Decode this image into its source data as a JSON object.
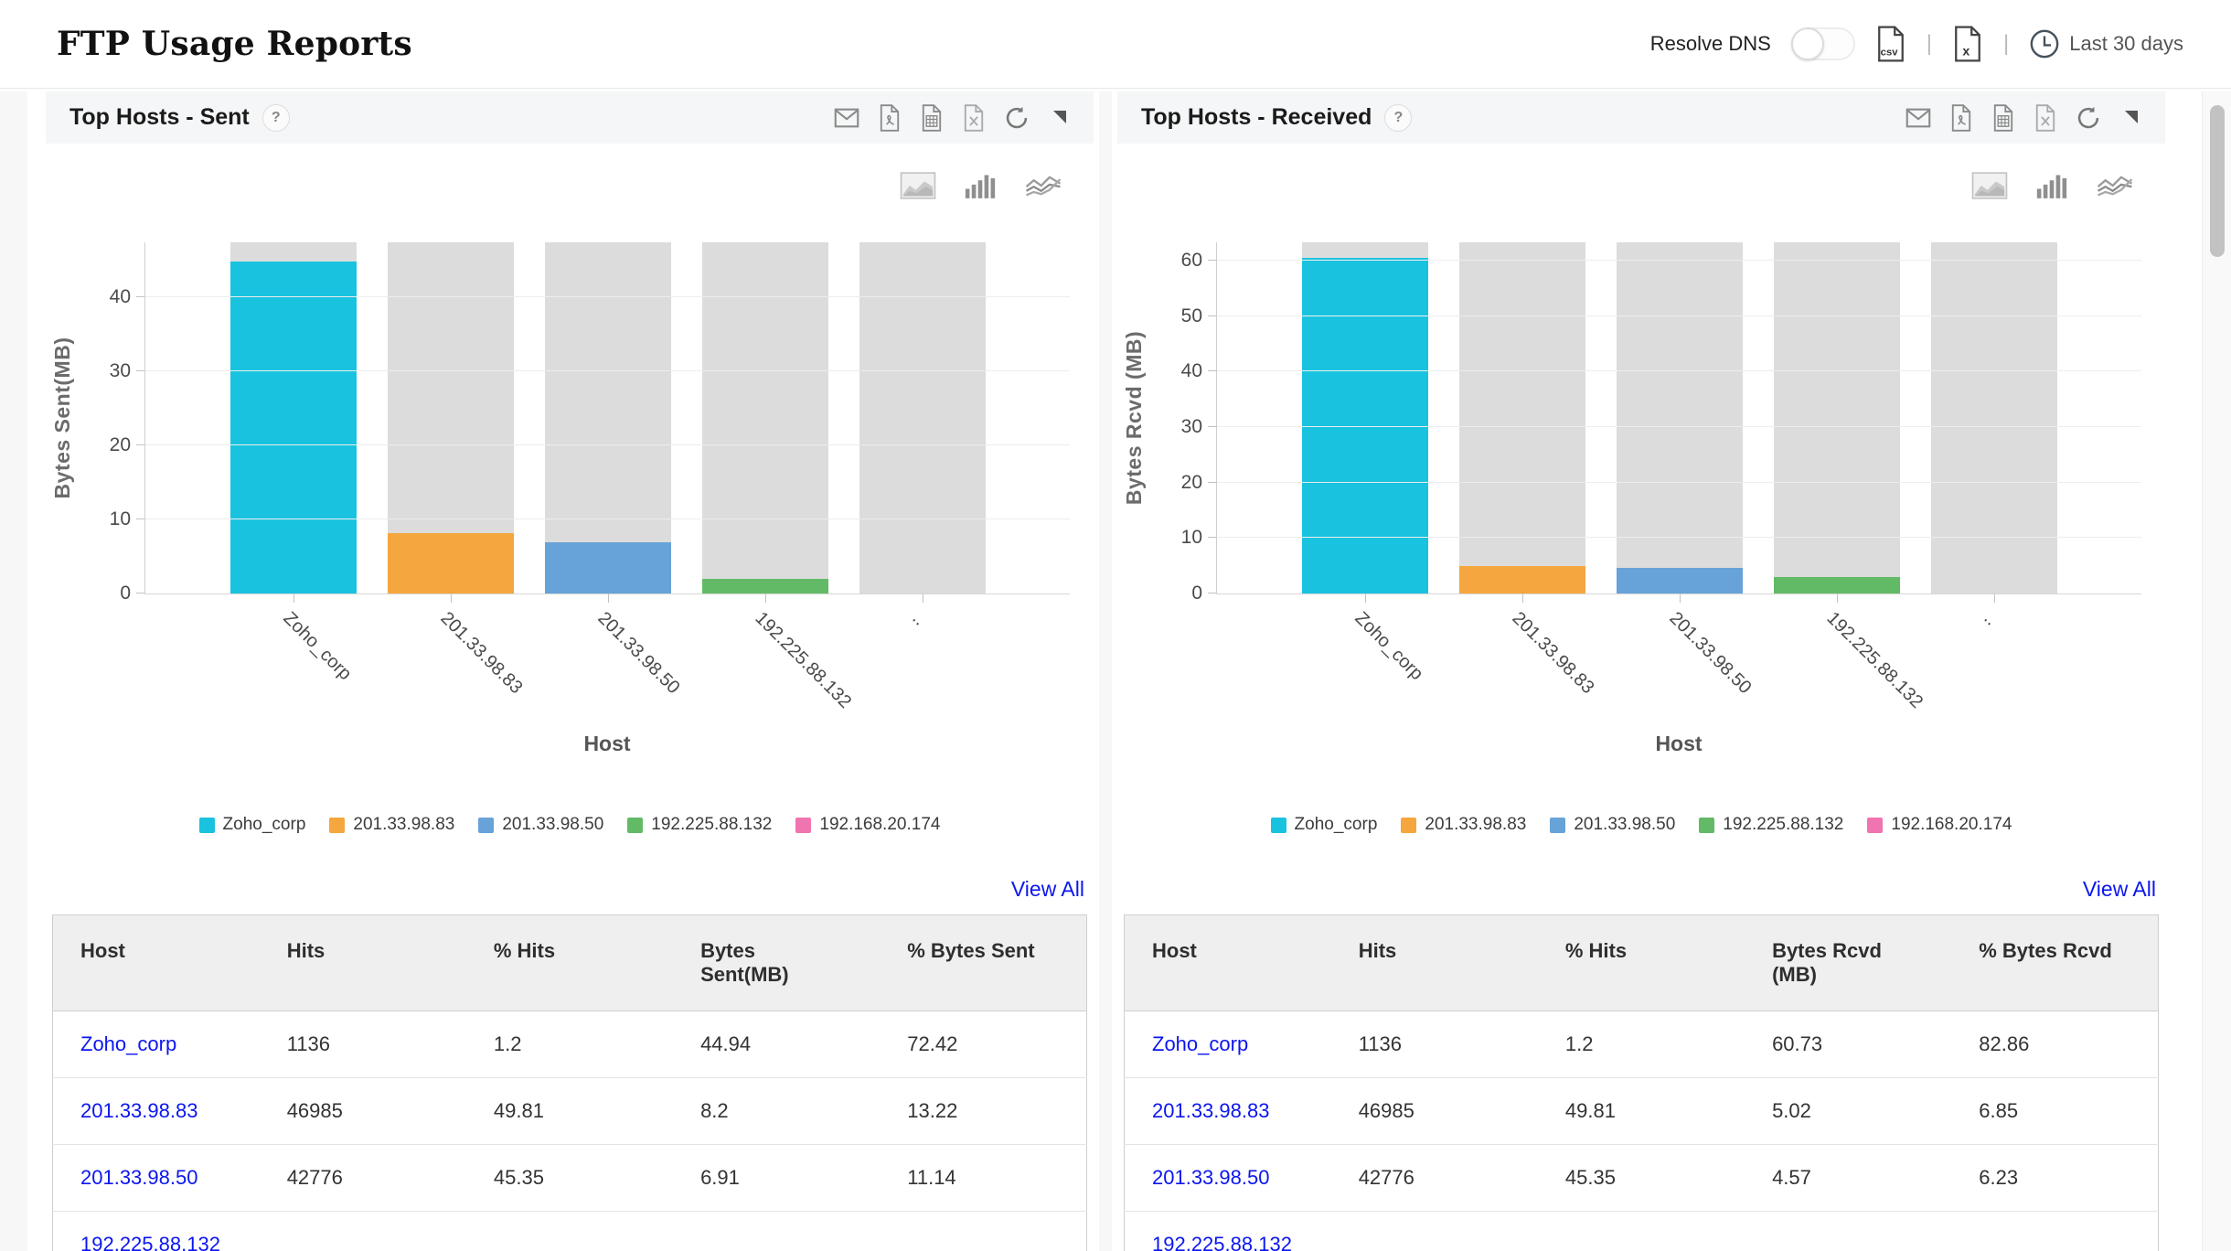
{
  "header": {
    "title": "FTP Usage Reports",
    "resolve_dns_label": "Resolve DNS",
    "toggle_state": "off",
    "export": {
      "csv_label": "csv",
      "excel_label": "x"
    },
    "time_range_label": "Last 30 days",
    "separator": "|"
  },
  "colors": {
    "link": "#0b16ee",
    "track": "#dcdcdc",
    "cyan": "#19c3df",
    "orange": "#f5a63f",
    "blue": "#67a2d8",
    "green": "#62ba66",
    "pink": "#ef74b0"
  },
  "panels": [
    {
      "title": "Top Hosts - Sent",
      "help_label": "?",
      "view_all_label": "View All",
      "toolbar_icons": [
        "email-icon",
        "pdf-icon",
        "report-icon",
        "excel-icon",
        "refresh-icon",
        "expand-icon"
      ],
      "chart_type_icons": [
        "area-chart-icon",
        "bar-chart-icon",
        "line-chart-icon"
      ],
      "chart_data": {
        "type": "bar",
        "title": "Top Hosts - Sent",
        "xlabel": "Host",
        "ylabel": "Bytes Sent(MB)",
        "ylim": [
          0,
          47.5
        ],
        "yticks": [
          0,
          10,
          20,
          30,
          40
        ],
        "grid": true,
        "legend_position": "bottom",
        "categories": [
          "Zoho_corp",
          "201.33.98.83",
          "201.33.98.50",
          "192.225.88.132",
          ".."
        ],
        "values": [
          44.94,
          8.2,
          6.91,
          2.0,
          0
        ],
        "bar_colors": [
          "#19c3df",
          "#f5a63f",
          "#67a2d8",
          "#62ba66",
          "#ef74b0"
        ],
        "track_color": "#dcdcdc",
        "legend": [
          {
            "label": "Zoho_corp",
            "color": "#19c3df"
          },
          {
            "label": "201.33.98.83",
            "color": "#f5a63f"
          },
          {
            "label": "201.33.98.50",
            "color": "#67a2d8"
          },
          {
            "label": "192.225.88.132",
            "color": "#62ba66"
          },
          {
            "label": "192.168.20.174",
            "color": "#ef74b0"
          }
        ]
      },
      "table": {
        "columns": [
          "Host",
          "Hits",
          "% Hits",
          "Bytes\nSent(MB)",
          "% Bytes Sent"
        ],
        "rows": [
          {
            "host": "Zoho_corp",
            "cells": [
              "1136",
              "1.2",
              "44.94",
              "72.42"
            ]
          },
          {
            "host": "201.33.98.83",
            "cells": [
              "46985",
              "49.81",
              "8.2",
              "13.22"
            ]
          },
          {
            "host": "201.33.98.50",
            "cells": [
              "42776",
              "45.35",
              "6.91",
              "11.14"
            ]
          },
          {
            "host": "192.225.88.132",
            "cells": [
              "",
              "",
              "",
              ""
            ]
          }
        ]
      }
    },
    {
      "title": "Top Hosts - Received",
      "help_label": "?",
      "view_all_label": "View All",
      "toolbar_icons": [
        "email-icon",
        "pdf-icon",
        "report-icon",
        "excel-icon",
        "refresh-icon",
        "expand-icon"
      ],
      "chart_type_icons": [
        "area-chart-icon",
        "bar-chart-icon",
        "line-chart-icon"
      ],
      "chart_data": {
        "type": "bar",
        "title": "Top Hosts - Received",
        "xlabel": "Host",
        "ylabel": "Bytes Rcvd (MB)",
        "ylim": [
          0,
          63.5
        ],
        "yticks": [
          0,
          10,
          20,
          30,
          40,
          50,
          60
        ],
        "grid": true,
        "legend_position": "bottom",
        "categories": [
          "Zoho_corp",
          "201.33.98.83",
          "201.33.98.50",
          "192.225.88.132",
          ".."
        ],
        "values": [
          60.73,
          5.02,
          4.57,
          3.0,
          0
        ],
        "bar_colors": [
          "#19c3df",
          "#f5a63f",
          "#67a2d8",
          "#62ba66",
          "#ef74b0"
        ],
        "track_color": "#dcdcdc",
        "legend": [
          {
            "label": "Zoho_corp",
            "color": "#19c3df"
          },
          {
            "label": "201.33.98.83",
            "color": "#f5a63f"
          },
          {
            "label": "201.33.98.50",
            "color": "#67a2d8"
          },
          {
            "label": "192.225.88.132",
            "color": "#62ba66"
          },
          {
            "label": "192.168.20.174",
            "color": "#ef74b0"
          }
        ]
      },
      "table": {
        "columns": [
          "Host",
          "Hits",
          "% Hits",
          "Bytes Rcvd\n(MB)",
          "% Bytes Rcvd"
        ],
        "rows": [
          {
            "host": "Zoho_corp",
            "cells": [
              "1136",
              "1.2",
              "60.73",
              "82.86"
            ]
          },
          {
            "host": "201.33.98.83",
            "cells": [
              "46985",
              "49.81",
              "5.02",
              "6.85"
            ]
          },
          {
            "host": "201.33.98.50",
            "cells": [
              "42776",
              "45.35",
              "4.57",
              "6.23"
            ]
          },
          {
            "host": "192.225.88.132",
            "cells": [
              "",
              "",
              "",
              ""
            ]
          }
        ]
      }
    }
  ]
}
